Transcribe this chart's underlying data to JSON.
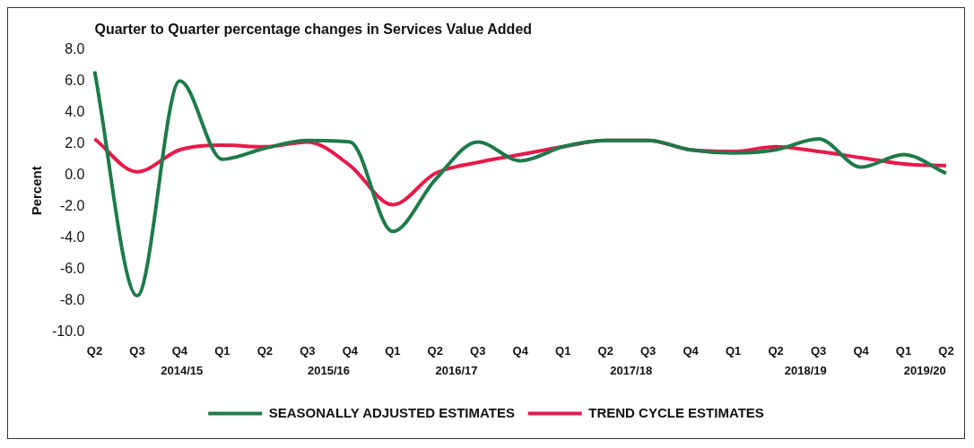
{
  "chart_data": {
    "type": "line",
    "title": "Quarter to Quarter percentage changes in Services Value Added",
    "ylabel": "Percent",
    "categories": [
      "Q2",
      "Q3",
      "Q4",
      "Q1",
      "Q2",
      "Q3",
      "Q4",
      "Q1",
      "Q2",
      "Q3",
      "Q4",
      "Q1",
      "Q2",
      "Q3",
      "Q4",
      "Q1",
      "Q2",
      "Q3",
      "Q4",
      "Q1",
      "Q2"
    ],
    "annotations": [
      "2014/15",
      "2015/16",
      "2016/17",
      "2017/18",
      "2018/19",
      "2019/20"
    ],
    "series": [
      {
        "name": "SEASONALLY ADJUSTED ESTIMATES",
        "color": "#1e7a4a",
        "values": [
          6.6,
          -7.7,
          6.0,
          1.0,
          1.7,
          2.2,
          2.1,
          -3.6,
          -0.3,
          2.1,
          0.9,
          1.8,
          2.2,
          2.2,
          1.6,
          1.4,
          1.6,
          2.3,
          0.5,
          1.3,
          0.1
        ]
      },
      {
        "name": "TREND CYCLE ESTIMATES",
        "color": "#e8194a",
        "values": [
          2.3,
          0.2,
          1.6,
          1.9,
          1.8,
          2.1,
          0.6,
          -1.9,
          0.1,
          0.8,
          1.3,
          1.8,
          2.2,
          2.2,
          1.6,
          1.5,
          1.8,
          1.5,
          1.1,
          0.7,
          0.6
        ]
      }
    ],
    "ylim": [
      -10,
      8
    ],
    "yticks": [
      {
        "value": -10,
        "label": "-10.0"
      },
      {
        "value": -8,
        "label": "-8.0"
      },
      {
        "value": -6,
        "label": "-6.0"
      },
      {
        "value": -4,
        "label": "-4.0"
      },
      {
        "value": -2,
        "label": "-2.0"
      },
      {
        "value": 0,
        "label": "0.0"
      },
      {
        "value": 2,
        "label": "2.0"
      },
      {
        "value": 4,
        "label": "4.0"
      },
      {
        "value": 6,
        "label": "6.0"
      },
      {
        "value": 8,
        "label": "8.0"
      }
    ],
    "grid": false,
    "legend": "bottom",
    "marker": "none",
    "line_style": "solid"
  }
}
